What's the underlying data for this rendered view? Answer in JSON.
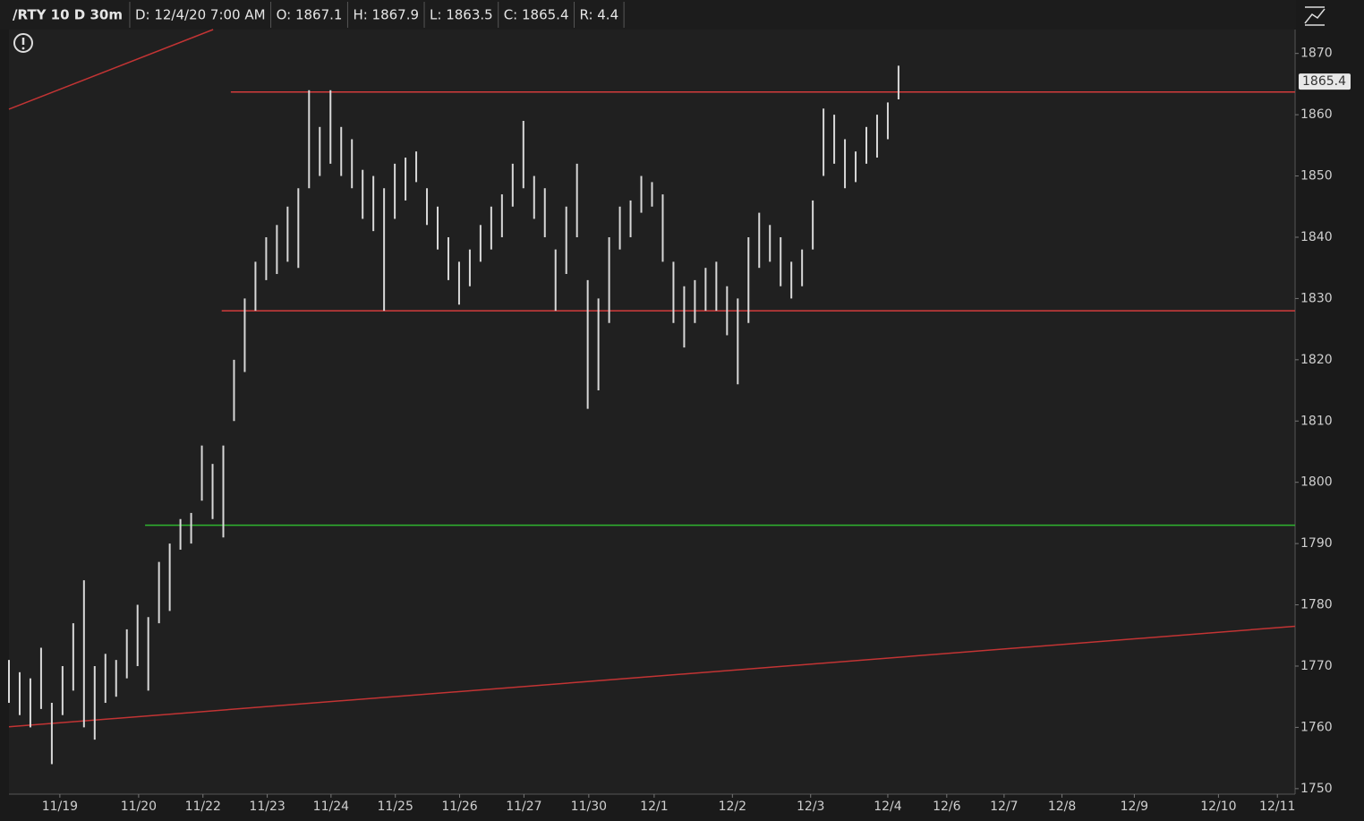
{
  "chart_data": {
    "type": "ohlc",
    "symbol": "/RTY 10 D 30m",
    "info": [
      "D: 12/4/20 7:00 AM",
      "O: 1867.1",
      "H: 1867.9",
      "L: 1863.5",
      "C: 1865.4",
      "R: 4.4"
    ],
    "last_price": 1865.4,
    "color": "#d8d8d8",
    "x": [
      0,
      2,
      4,
      6,
      8,
      10,
      12,
      14,
      16,
      18,
      20,
      22,
      24,
      26,
      28,
      30,
      32,
      34,
      36,
      38,
      40,
      42,
      44,
      46,
      48,
      50,
      52,
      54,
      56,
      58,
      60,
      62,
      64,
      66,
      68,
      70,
      72,
      74,
      76,
      78,
      80,
      82,
      84,
      86,
      88,
      90,
      92,
      94,
      96,
      98,
      100,
      102,
      104,
      106,
      108,
      110,
      112,
      114,
      116,
      118,
      120,
      122,
      124,
      126,
      128,
      130,
      132,
      134,
      136,
      138,
      140,
      142,
      144,
      146,
      148,
      150,
      152,
      154,
      156,
      158,
      160,
      162,
      164,
      166
    ],
    "high": [
      1771,
      1769,
      1768,
      1773,
      1764,
      1770,
      1777,
      1784,
      1770,
      1772,
      1771,
      1776,
      1780,
      1778,
      1787,
      1790,
      1794,
      1795,
      1806,
      1803,
      1806,
      1820,
      1830,
      1836,
      1840,
      1842,
      1845,
      1848,
      1864,
      1858,
      1864,
      1858,
      1856,
      1851,
      1850,
      1848,
      1852,
      1853,
      1854,
      1848,
      1845,
      1840,
      1836,
      1838,
      1842,
      1845,
      1847,
      1852,
      1859,
      1850,
      1848,
      1838,
      1845,
      1852,
      1833,
      1830,
      1840,
      1845,
      1846,
      1850,
      1849,
      1847,
      1836,
      1832,
      1833,
      1835,
      1836,
      1832,
      1830,
      1840,
      1844,
      1842,
      1840,
      1836,
      1838,
      1846,
      1861,
      1860,
      1856,
      1854,
      1858,
      1860,
      1862,
      1868
    ],
    "low": [
      1764,
      1762,
      1760,
      1763,
      1754,
      1762,
      1766,
      1760,
      1758,
      1764,
      1765,
      1768,
      1770,
      1766,
      1777,
      1779,
      1789,
      1790,
      1797,
      1794,
      1791,
      1810,
      1818,
      1828,
      1833,
      1834,
      1836,
      1835,
      1848,
      1850,
      1852,
      1850,
      1848,
      1843,
      1841,
      1828,
      1843,
      1846,
      1849,
      1842,
      1838,
      1833,
      1829,
      1832,
      1836,
      1838,
      1840,
      1845,
      1848,
      1843,
      1840,
      1828,
      1834,
      1840,
      1812,
      1815,
      1826,
      1838,
      1840,
      1844,
      1845,
      1836,
      1826,
      1822,
      1826,
      1828,
      1828,
      1824,
      1816,
      1826,
      1835,
      1836,
      1832,
      1830,
      1832,
      1838,
      1850,
      1852,
      1848,
      1849,
      1852,
      1853,
      1856,
      1862.5
    ],
    "lines": [
      {
        "color": "#d23c3c",
        "x": [
          41.4,
          240
        ],
        "y": [
          1863.7,
          1863.7
        ]
      },
      {
        "color": "#d23c3c",
        "x": [
          39.7,
          240
        ],
        "y": [
          1828,
          1828
        ]
      },
      {
        "color": "#2fb52f",
        "x": [
          25.4,
          240
        ],
        "y": [
          1793,
          1793
        ]
      },
      {
        "color": "#c23434",
        "x": [
          0,
          240
        ],
        "y": [
          1760.1,
          1776.5
        ]
      },
      {
        "color": "#c23434",
        "x": [
          0,
          38.1
        ],
        "y": [
          1860.9,
          1873.9
        ]
      }
    ],
    "xlim": [
      0,
      240
    ],
    "ylim": [
      1749.1,
      1873.9
    ],
    "yticks": [
      1750,
      1760,
      1770,
      1780,
      1790,
      1800,
      1810,
      1820,
      1830,
      1840,
      1850,
      1860,
      1870
    ],
    "xticks": [
      {
        "value": 9.5,
        "label": "11/19"
      },
      {
        "value": 24.2,
        "label": "11/20"
      },
      {
        "value": 36.2,
        "label": "11/22"
      },
      {
        "value": 48.2,
        "label": "11/23"
      },
      {
        "value": 60.1,
        "label": "11/24"
      },
      {
        "value": 72.1,
        "label": "11/25"
      },
      {
        "value": 84.1,
        "label": "11/26"
      },
      {
        "value": 96.1,
        "label": "11/27"
      },
      {
        "value": 108.2,
        "label": "11/30"
      },
      {
        "value": 120.4,
        "label": "12/1"
      },
      {
        "value": 135,
        "label": "12/2"
      },
      {
        "value": 149.6,
        "label": "12/3"
      },
      {
        "value": 164,
        "label": "12/4"
      },
      {
        "value": 175,
        "label": "12/6"
      },
      {
        "value": 185.7,
        "label": "12/7"
      },
      {
        "value": 196.5,
        "label": "12/8"
      },
      {
        "value": 210,
        "label": "12/9"
      },
      {
        "value": 225.7,
        "label": "12/10"
      },
      {
        "value": 236.7,
        "label": "12/11"
      }
    ]
  }
}
